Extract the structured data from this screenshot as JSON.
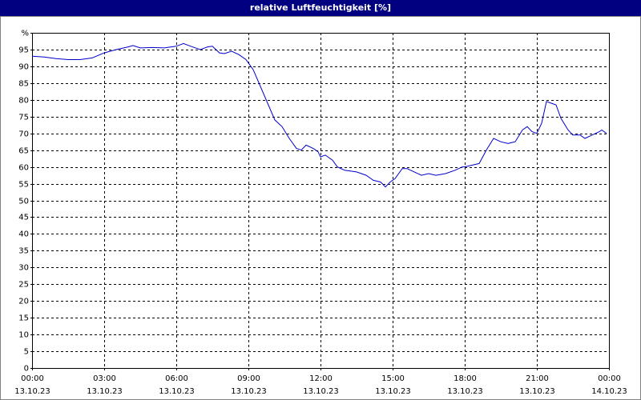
{
  "chart_data": {
    "type": "line",
    "title": "relative Luftfeuchtigkeit [%]",
    "x": [
      0,
      0.5,
      1,
      1.5,
      2,
      2.5,
      3,
      3.5,
      4,
      4.2,
      4.5,
      5,
      5.5,
      6,
      6.3,
      6.6,
      7,
      7.3,
      7.5,
      7.8,
      8,
      8.3,
      8.6,
      8.9,
      9.0,
      9.2,
      9.5,
      9.8,
      10.1,
      10.4,
      10.7,
      11.0,
      11.2,
      11.4,
      11.7,
      11.9,
      12.0,
      12.2,
      12.5,
      12.7,
      13.0,
      13.5,
      13.9,
      14.2,
      14.5,
      14.7,
      14.9,
      15.1,
      15.4,
      15.6,
      15.9,
      16.2,
      16.5,
      16.8,
      17.2,
      17.6,
      17.9,
      18.0,
      18.3,
      18.6,
      18.9,
      19.2,
      19.5,
      19.8,
      20.1,
      20.4,
      20.6,
      20.8,
      21.0,
      21.2,
      21.4,
      21.6,
      21.8,
      22.0,
      22.3,
      22.5,
      22.8,
      23.0,
      23.3,
      23.6,
      23.7,
      23.9
    ],
    "series": [
      {
        "color": "#0000cc",
        "values": [
          93,
          92.8,
          92.3,
          92,
          92,
          92.5,
          94,
          95,
          95.8,
          96.2,
          95.5,
          95.6,
          95.5,
          96,
          96.8,
          96,
          95,
          95.8,
          96,
          94,
          93.8,
          94.5,
          93.5,
          92,
          91,
          89,
          84,
          79,
          74,
          72,
          68.5,
          65.5,
          65,
          66.5,
          65.5,
          64.5,
          63,
          63.5,
          62,
          60,
          59,
          58.5,
          57.5,
          56,
          55.5,
          54,
          55.5,
          56.5,
          59.5,
          59.5,
          58.5,
          57.5,
          58,
          57.5,
          58,
          59,
          60,
          60,
          60.5,
          61,
          65,
          68.5,
          67.5,
          67,
          67.5,
          71,
          72,
          70.5,
          70,
          73,
          79.5,
          79,
          78.5,
          74.5,
          71,
          69.5,
          69.5,
          68.5,
          69.5,
          70.5,
          71,
          70
        ]
      }
    ],
    "xlim": [
      0,
      24
    ],
    "xticks": [
      {
        "value": 0,
        "label": "00:00",
        "date": "13.10.23"
      },
      {
        "value": 3,
        "label": "03:00",
        "date": "13.10.23"
      },
      {
        "value": 6,
        "label": "06:00",
        "date": "13.10.23"
      },
      {
        "value": 9,
        "label": "09:00",
        "date": "13.10.23"
      },
      {
        "value": 12,
        "label": "12:00",
        "date": "13.10.23"
      },
      {
        "value": 15,
        "label": "15:00",
        "date": "13.10.23"
      },
      {
        "value": 18,
        "label": "18:00",
        "date": "13.10.23"
      },
      {
        "value": 21,
        "label": "21:00",
        "date": "13.10.23"
      },
      {
        "value": 24,
        "label": "00:00",
        "date": "14.10.23"
      }
    ],
    "ylim": [
      0,
      100
    ],
    "yticks": [
      0,
      5,
      10,
      15,
      20,
      25,
      30,
      35,
      40,
      45,
      50,
      55,
      60,
      65,
      70,
      75,
      80,
      85,
      90,
      95,
      {
        "value": 100,
        "label": "%"
      }
    ],
    "grid": true
  }
}
